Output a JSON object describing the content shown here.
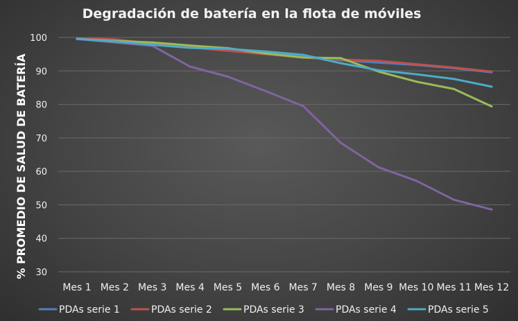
{
  "chart_data": {
    "type": "line",
    "title": "Degradación de batería en la flota de móviles",
    "xlabel": "",
    "ylabel": "% PROMEDIO DE SALUD DE BATERÍA",
    "categories": [
      "Mes 1",
      "Mes 2",
      "Mes 3",
      "Mes 4",
      "Mes 5",
      "Mes 6",
      "Mes 7",
      "Mes 8",
      "Mes 9",
      "Mes 10",
      "Mes 11",
      "Mes 12"
    ],
    "ylim": [
      30,
      100
    ],
    "yticks": [
      30,
      40,
      50,
      60,
      70,
      80,
      90,
      100
    ],
    "grid": true,
    "legend_position": "bottom",
    "series": [
      {
        "name": "PDAs serie 1",
        "color": "#4f81bd",
        "values": [
          99.5,
          98.8,
          98.0,
          97.2,
          96.4,
          95.6,
          94.5,
          93.2,
          92.5,
          91.8,
          90.8,
          89.6
        ]
      },
      {
        "name": "PDAs serie 2",
        "color": "#c0504d",
        "values": [
          99.8,
          99.4,
          98.2,
          97.0,
          96.0,
          95.0,
          94.0,
          93.4,
          93.0,
          92.0,
          91.0,
          89.8
        ]
      },
      {
        "name": "PDAs serie 3",
        "color": "#9bbb59",
        "values": [
          99.5,
          99.0,
          98.5,
          97.6,
          96.8,
          95.2,
          94.0,
          93.8,
          89.8,
          86.8,
          84.6,
          79.4
        ]
      },
      {
        "name": "PDAs serie 4",
        "color": "#8064a2",
        "values": [
          99.5,
          98.5,
          97.5,
          91.3,
          88.3,
          84.0,
          79.5,
          68.5,
          61.2,
          57.2,
          51.5,
          48.6
        ]
      },
      {
        "name": "PDAs serie 5",
        "color": "#4bacc6",
        "values": [
          99.6,
          98.8,
          97.8,
          96.9,
          96.6,
          95.8,
          94.8,
          92.3,
          90.2,
          89.0,
          87.6,
          85.3
        ]
      }
    ]
  }
}
